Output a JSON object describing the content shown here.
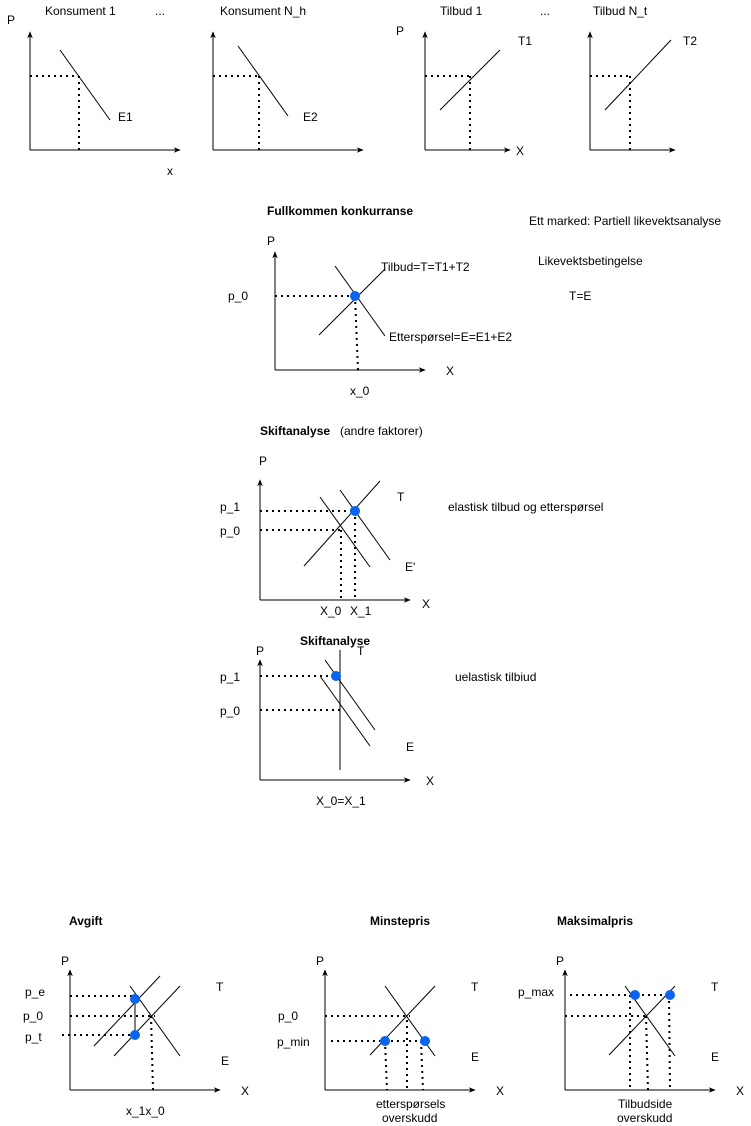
{
  "top": {
    "consumer1_title": "Konsument 1",
    "ellipsis1": "...",
    "consumerN_title": "Konsument N_h",
    "supply1_title": "Tilbud 1",
    "ellipsis2": "...",
    "supplyN_title": "Tilbud N_t",
    "p_label_left": "P",
    "x_label_left": "x",
    "curve_e1": "E1",
    "curve_e2": "E2",
    "p_label_supply": "P",
    "x_label_supply": "X",
    "curve_t1": "T1",
    "curve_t2": "T2"
  },
  "competition": {
    "title": "Fullkommen konkurranse",
    "p_axis": "P",
    "x_axis": "X",
    "p0": "p_0",
    "x0": "x_0",
    "supply_label": "Tilbud=T=T1+T2",
    "demand_label": "Etterspørsel=E=E1+E2"
  },
  "notes": {
    "market": "Ett marked: Partiell likevektsanalyse",
    "condition_title": "Likevektsbetingelse",
    "condition": "T=E"
  },
  "shift1": {
    "title": "Skiftanalyse",
    "subtitle": "(andre faktorer)",
    "p_axis": "P",
    "x_axis": "X",
    "p1": "p_1",
    "p0": "p_0",
    "t_label": "T",
    "e_label": "E'",
    "x0": "X_0",
    "x1": "X_1",
    "note": "elastisk tilbud og etterspørsel"
  },
  "shift2": {
    "title": "Skiftanalyse",
    "p_axis": "P",
    "x_axis": "X",
    "t_label": "T",
    "p1": "p_1",
    "p0": "p_0",
    "e_label": "E",
    "x_label": "X_0=X_1",
    "note": "uelastisk tilbiud"
  },
  "tax": {
    "title": "Avgift",
    "p_axis": "P",
    "x_axis": "X",
    "pe": "p_e",
    "p0": "p_0",
    "pt": "p_t",
    "t_label": "T",
    "e_label": "E",
    "x_label": "x_1x_0"
  },
  "minprice": {
    "title": "Minstepris",
    "p_axis": "P",
    "x_axis": "X",
    "p0": "p_0",
    "pmin": "p_min",
    "t_label": "T",
    "e_label": "E",
    "surplus_line1": "etterspørsels",
    "surplus_line2": "overskudd"
  },
  "maxprice": {
    "title": "Maksimalpris",
    "p_axis": "P",
    "x_axis": "X",
    "pmax": "p_max",
    "t_label": "T",
    "e_label": "E",
    "surplus_line1": "Tilbudside",
    "surplus_line2": "overskudd"
  },
  "colors": {
    "point": "#0a64f0",
    "line": "#000000"
  }
}
